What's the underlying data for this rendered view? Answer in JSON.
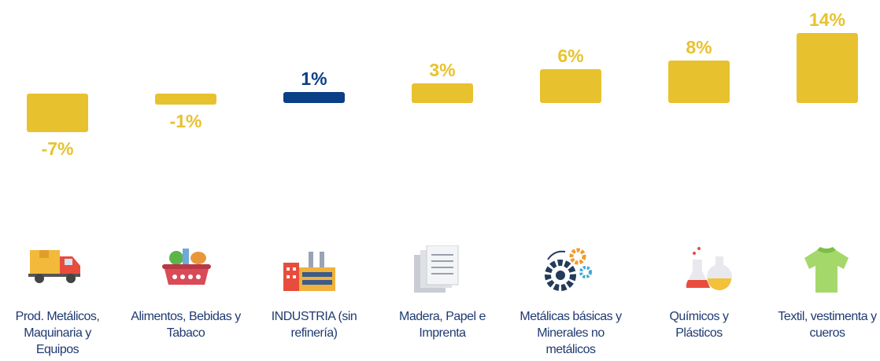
{
  "chart_data": {
    "type": "bar",
    "categories": [
      "Prod. Metálicos, Maquinaria y Equipos",
      "Alimentos, Bebidas y Tabaco",
      "INDUSTRIA (sin refinería)",
      "Madera, Papel e Imprenta",
      "Metálicas básicas y Minerales no metálicos",
      "Químicos y Plásticos",
      "Textil, vestimenta y cueros"
    ],
    "values": [
      -7,
      -1,
      1,
      3,
      6,
      8,
      14
    ],
    "value_labels": [
      "-7%",
      "-1%",
      "1%",
      "3%",
      "6%",
      "8%",
      "14%"
    ],
    "colors": [
      "#e8c22e",
      "#e8c22e",
      "#0b3f86",
      "#e8c22e",
      "#e8c22e",
      "#e8c22e",
      "#e8c22e"
    ]
  }
}
